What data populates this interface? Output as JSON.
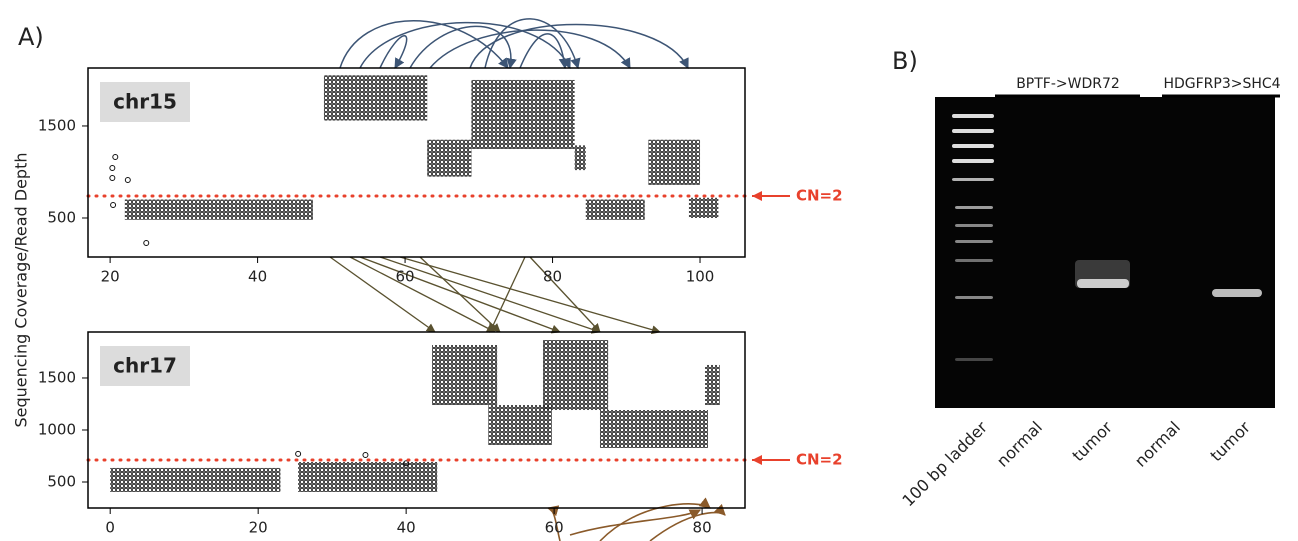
{
  "panel_labels": [
    "A)",
    "B)"
  ],
  "y_axis_label": "Sequencing Coverage/Read Depth",
  "chart_data": [
    {
      "type": "scatter",
      "title": "chr15",
      "xlim": [
        17.0,
        106.1
      ],
      "ylim": [
        76,
        2130
      ],
      "xticks": [
        20,
        40,
        60,
        80,
        100
      ],
      "yticks": [
        500,
        1500
      ],
      "color": "#111111",
      "segments": [
        {
          "x": [
            22,
            47.5
          ],
          "y": [
            480,
            700
          ]
        },
        {
          "x": [
            49,
            63
          ],
          "y": [
            1560,
            2050
          ]
        },
        {
          "x": [
            63,
            69
          ],
          "y": [
            950,
            1350
          ]
        },
        {
          "x": [
            69,
            83
          ],
          "y": [
            1250,
            2000
          ]
        },
        {
          "x": [
            83,
            84.5
          ],
          "y": [
            1020,
            1290
          ]
        },
        {
          "x": [
            84.5,
            92.5
          ],
          "y": [
            480,
            700
          ]
        },
        {
          "x": [
            93,
            100
          ],
          "y": [
            860,
            1350
          ]
        },
        {
          "x": [
            98.5,
            102.5
          ],
          "y": [
            500,
            720
          ]
        }
      ],
      "points": {
        "x": [
          20.7,
          20.3,
          20.3,
          22.4,
          20.4,
          24.9
        ],
        "y": [
          1163,
          1043,
          935,
          913,
          641,
          228
        ]
      },
      "reference_line": {
        "value": 739,
        "label": "CN=2"
      }
    },
    {
      "type": "scatter",
      "title": "chr17",
      "xlim": [
        -3.0,
        85.8
      ],
      "ylim": [
        250,
        1942
      ],
      "xticks": [
        0,
        20,
        40,
        60,
        80
      ],
      "yticks": [
        500,
        1000,
        1500
      ],
      "color": "#111111",
      "segments": [
        {
          "x": [
            0,
            23
          ],
          "y": [
            404,
            635
          ]
        },
        {
          "x": [
            25.4,
            44.2
          ],
          "y": [
            404,
            692
          ]
        },
        {
          "x": [
            43.5,
            52.3
          ],
          "y": [
            1240,
            1817
          ]
        },
        {
          "x": [
            51.1,
            59.7
          ],
          "y": [
            856,
            1240
          ]
        },
        {
          "x": [
            58.5,
            67.3
          ],
          "y": [
            1192,
            1865
          ]
        },
        {
          "x": [
            66.2,
            80.8
          ],
          "y": [
            827,
            1192
          ]
        },
        {
          "x": [
            80.4,
            82.4
          ],
          "y": [
            1240,
            1625
          ]
        }
      ],
      "points": {
        "x": [
          25.4,
          34.5,
          40.0
        ],
        "y": [
          770,
          760,
          680
        ]
      },
      "reference_line": {
        "value": 712,
        "label": "CN=2"
      }
    }
  ],
  "gel": {
    "headers": [
      "BPTF->WDR72",
      "HDGFRP3>SHC4"
    ],
    "lanes": [
      "100 bp ladder",
      "normal",
      "tumor",
      "normal",
      "tumor"
    ]
  }
}
